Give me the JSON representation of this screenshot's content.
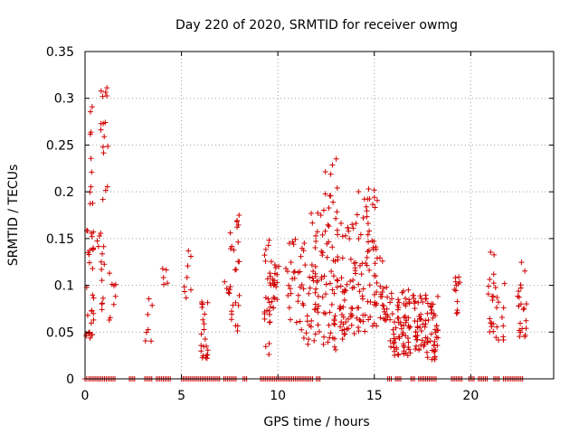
{
  "chart_data": {
    "type": "scatter",
    "title": "Day 220 of 2020, SRMTID for receiver owmg",
    "xlabel": "GPS time / hours",
    "ylabel": "SRMTID / TECUs",
    "xlim": [
      0,
      24.3
    ],
    "ylim": [
      0,
      0.35
    ],
    "grid": true,
    "marker": "+",
    "color": "#d00000",
    "x_ticks": [
      0,
      5,
      10,
      15,
      20
    ],
    "y_ticks": [
      0,
      0.05,
      0.1,
      0.15,
      0.2,
      0.25,
      0.3,
      0.35
    ],
    "x_tick_labels": [
      "0",
      "5",
      "10",
      "15",
      "20"
    ],
    "y_tick_labels": [
      "0",
      "0.05",
      "0.1",
      "0.15",
      "0.2",
      "0.25",
      "0.3",
      "0.35"
    ],
    "clusters": [
      {
        "x": [
          0.05,
          0.45
        ],
        "ymin": 0.04,
        "ymax": 0.16,
        "n": 30,
        "seed": 1
      },
      {
        "x": [
          0.2,
          0.4
        ],
        "ymin": 0.18,
        "ymax": 0.31,
        "n": 10,
        "seed": 2
      },
      {
        "x": [
          0.6,
          1.0
        ],
        "ymin": 0.06,
        "ymax": 0.16,
        "n": 14,
        "seed": 3
      },
      {
        "x": [
          0.8,
          1.2
        ],
        "ymin": 0.19,
        "ymax": 0.325,
        "n": 16,
        "seed": 4
      },
      {
        "x": [
          1.2,
          1.6
        ],
        "ymin": 0.06,
        "ymax": 0.14,
        "n": 8,
        "seed": 5
      },
      {
        "x": [
          3.1,
          3.5
        ],
        "ymin": 0.04,
        "ymax": 0.11,
        "n": 7,
        "seed": 6
      },
      {
        "x": [
          4.0,
          4.3
        ],
        "ymin": 0.09,
        "ymax": 0.125,
        "n": 5,
        "seed": 7
      },
      {
        "x": [
          5.1,
          5.5
        ],
        "ymin": 0.08,
        "ymax": 0.14,
        "n": 8,
        "seed": 8
      },
      {
        "x": [
          6.0,
          6.4
        ],
        "ymin": 0.02,
        "ymax": 0.09,
        "n": 22,
        "seed": 9
      },
      {
        "x": [
          7.2,
          7.5
        ],
        "ymin": 0.09,
        "ymax": 0.11,
        "n": 4,
        "seed": 10
      },
      {
        "x": [
          7.5,
          8.0
        ],
        "ymin": 0.05,
        "ymax": 0.175,
        "n": 26,
        "seed": 11
      },
      {
        "x": [
          9.3,
          9.6
        ],
        "ymin": 0.01,
        "ymax": 0.155,
        "n": 22,
        "seed": 12
      },
      {
        "x": [
          9.6,
          10.1
        ],
        "ymin": 0.075,
        "ymax": 0.13,
        "n": 22,
        "seed": 13
      },
      {
        "x": [
          10.4,
          11.0
        ],
        "ymin": 0.06,
        "ymax": 0.155,
        "n": 18,
        "seed": 14
      },
      {
        "x": [
          11.0,
          11.7
        ],
        "ymin": 0.035,
        "ymax": 0.15,
        "n": 26,
        "seed": 15
      },
      {
        "x": [
          11.7,
          12.3
        ],
        "ymin": 0.04,
        "ymax": 0.18,
        "n": 36,
        "seed": 16
      },
      {
        "x": [
          12.3,
          13.2
        ],
        "ymin": 0.03,
        "ymax": 0.25,
        "n": 60,
        "seed": 17
      },
      {
        "x": [
          13.2,
          14.1
        ],
        "ymin": 0.04,
        "ymax": 0.17,
        "n": 55,
        "seed": 18
      },
      {
        "x": [
          14.1,
          15.2
        ],
        "ymin": 0.05,
        "ymax": 0.21,
        "n": 70,
        "seed": 19
      },
      {
        "x": [
          15.2,
          15.7
        ],
        "ymin": 0.06,
        "ymax": 0.15,
        "n": 22,
        "seed": 20
      },
      {
        "x": [
          15.8,
          16.9
        ],
        "ymin": 0.025,
        "ymax": 0.095,
        "n": 70,
        "seed": 21
      },
      {
        "x": [
          17.0,
          17.7
        ],
        "ymin": 0.03,
        "ymax": 0.09,
        "n": 45,
        "seed": 22
      },
      {
        "x": [
          17.7,
          18.3
        ],
        "ymin": 0.02,
        "ymax": 0.09,
        "n": 40,
        "seed": 23
      },
      {
        "x": [
          19.1,
          19.5
        ],
        "ymin": 0.05,
        "ymax": 0.11,
        "n": 12,
        "seed": 24
      },
      {
        "x": [
          20.9,
          21.3
        ],
        "ymin": 0.05,
        "ymax": 0.14,
        "n": 18,
        "seed": 25
      },
      {
        "x": [
          21.3,
          21.8
        ],
        "ymin": 0.04,
        "ymax": 0.11,
        "n": 12,
        "seed": 26
      },
      {
        "x": [
          22.4,
          22.9
        ],
        "ymin": 0.045,
        "ymax": 0.13,
        "n": 22,
        "seed": 27
      }
    ],
    "zero_segments": [
      [
        0,
        0.1
      ],
      [
        0.2,
        1.6
      ],
      [
        2.3,
        2.6
      ],
      [
        3.1,
        3.5
      ],
      [
        3.7,
        4.5
      ],
      [
        5.0,
        7.0
      ],
      [
        7.2,
        7.9
      ],
      [
        8.2,
        8.4
      ],
      [
        9.1,
        11.8
      ],
      [
        12.0,
        12.2
      ],
      [
        15.7,
        15.9
      ],
      [
        16.1,
        16.4
      ],
      [
        16.9,
        17.1
      ],
      [
        17.3,
        18.2
      ],
      [
        19.0,
        19.6
      ],
      [
        19.9,
        20.2
      ],
      [
        20.4,
        20.9
      ],
      [
        21.2,
        21.5
      ],
      [
        21.7,
        22.7
      ]
    ]
  }
}
